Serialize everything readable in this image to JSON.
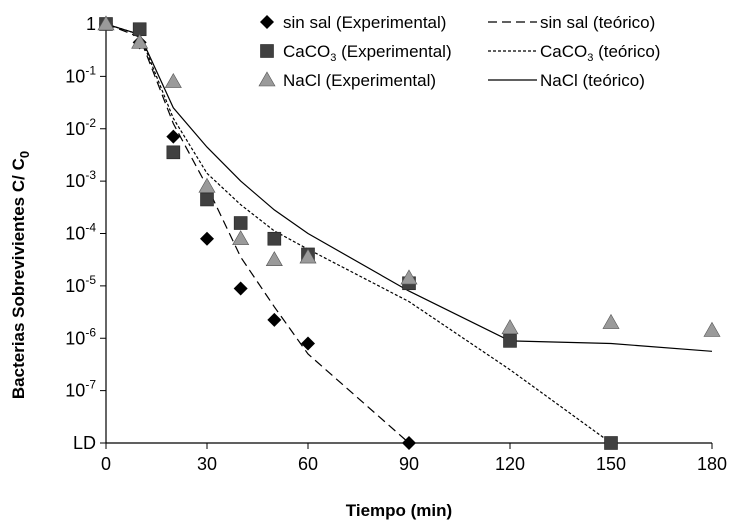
{
  "chart_data": {
    "type": "scatter",
    "xlabel": "Tiempo (min)",
    "ylabel_main": "Bacterias Sobrevivientes C/ C",
    "ylabel_sub": "0",
    "x_ticks": [
      0,
      30,
      60,
      90,
      120,
      150,
      180
    ],
    "xlim": [
      0,
      180
    ],
    "y_ticks": [
      {
        "exp": 0,
        "base": "1",
        "sup": ""
      },
      {
        "exp": -1,
        "base": "10",
        "sup": "-1"
      },
      {
        "exp": -2,
        "base": "10",
        "sup": "-2"
      },
      {
        "exp": -3,
        "base": "10",
        "sup": "-3"
      },
      {
        "exp": -4,
        "base": "10",
        "sup": "-4"
      },
      {
        "exp": -5,
        "base": "10",
        "sup": "-5"
      },
      {
        "exp": -6,
        "base": "10",
        "sup": "-6"
      },
      {
        "exp": -7,
        "base": "10",
        "sup": "-7"
      },
      {
        "exp": -8,
        "base": "LD",
        "sup": ""
      }
    ],
    "y_scale": "log10",
    "ylim_exp": [
      -8,
      0
    ],
    "grid": false,
    "legend_position": "top-right",
    "experimental": [
      {
        "legend_pre": "sin sal (Experimental)",
        "legend_sub": "",
        "legend_post": "",
        "marker": "diamond",
        "color": "#000000",
        "points": [
          [
            0,
            0
          ],
          [
            10,
            -0.35
          ],
          [
            20,
            -2.15
          ],
          [
            30,
            -4.1
          ],
          [
            40,
            -5.05
          ],
          [
            50,
            -5.65
          ],
          [
            60,
            -6.1
          ],
          [
            90,
            -8
          ]
        ]
      },
      {
        "legend_pre": "CaCO",
        "legend_sub": "3",
        "legend_post": " (Experimental)",
        "marker": "square",
        "color": "#404040",
        "points": [
          [
            0,
            0
          ],
          [
            10,
            -0.1
          ],
          [
            20,
            -2.45
          ],
          [
            30,
            -3.35
          ],
          [
            40,
            -3.8
          ],
          [
            50,
            -4.1
          ],
          [
            60,
            -4.4
          ],
          [
            90,
            -4.95
          ],
          [
            120,
            -6.05
          ],
          [
            150,
            -8
          ]
        ]
      },
      {
        "legend_pre": "NaCl (Experimental)",
        "legend_sub": "",
        "legend_post": "",
        "marker": "triangle",
        "color": "#9a9a9a",
        "points": [
          [
            0,
            0
          ],
          [
            10,
            -0.35
          ],
          [
            20,
            -1.1
          ],
          [
            30,
            -3.1
          ],
          [
            40,
            -4.1
          ],
          [
            50,
            -4.5
          ],
          [
            60,
            -4.45
          ],
          [
            90,
            -4.85
          ],
          [
            120,
            -5.8
          ],
          [
            150,
            -5.7
          ],
          [
            180,
            -5.85
          ]
        ]
      }
    ],
    "theoretical": [
      {
        "legend_pre": "sin sal (teórico)",
        "legend_sub": "",
        "legend_post": "",
        "dash": "9,5",
        "points": [
          [
            0,
            0
          ],
          [
            10,
            -0.25
          ],
          [
            20,
            -1.9
          ],
          [
            30,
            -3.1
          ],
          [
            40,
            -4.45
          ],
          [
            50,
            -5.4
          ],
          [
            60,
            -6.3
          ],
          [
            90,
            -8
          ]
        ]
      },
      {
        "legend_pre": "CaCO",
        "legend_sub": "3",
        "legend_post": " (teórico)",
        "dash": "3,2",
        "points": [
          [
            0,
            0
          ],
          [
            10,
            -0.2
          ],
          [
            20,
            -1.8
          ],
          [
            30,
            -2.85
          ],
          [
            40,
            -3.45
          ],
          [
            50,
            -3.95
          ],
          [
            60,
            -4.3
          ],
          [
            90,
            -5.3
          ],
          [
            120,
            -6.6
          ],
          [
            150,
            -8
          ]
        ]
      },
      {
        "legend_pre": "NaCl (teórico)",
        "legend_sub": "",
        "legend_post": "",
        "dash": "",
        "points": [
          [
            0,
            0
          ],
          [
            10,
            -0.2
          ],
          [
            20,
            -1.6
          ],
          [
            30,
            -2.35
          ],
          [
            40,
            -3.0
          ],
          [
            50,
            -3.55
          ],
          [
            60,
            -4.0
          ],
          [
            90,
            -5.1
          ],
          [
            120,
            -6.05
          ],
          [
            150,
            -6.1
          ],
          [
            180,
            -6.25
          ]
        ]
      }
    ]
  }
}
